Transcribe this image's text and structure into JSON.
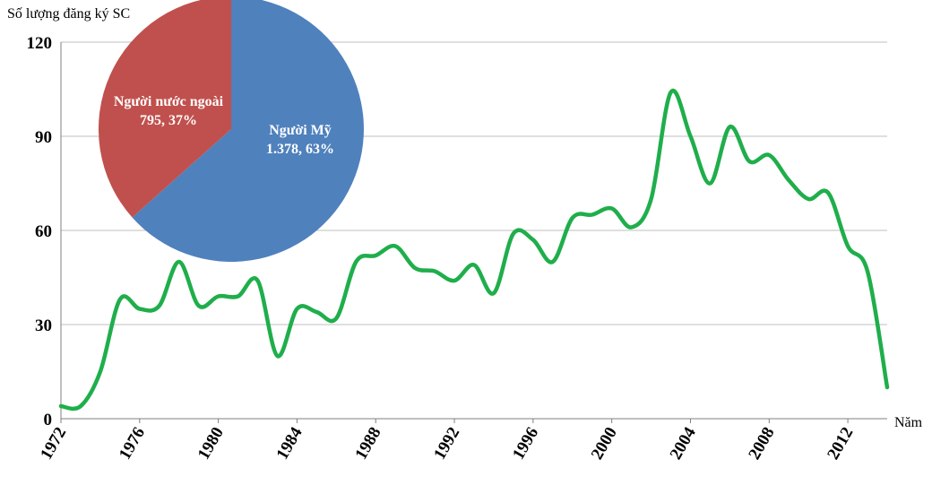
{
  "chart_data": [
    {
      "type": "line",
      "ylabel": "Số lượng đăng ký SC",
      "xlabel": "Năm",
      "ylim": [
        0,
        120
      ],
      "yticks": [
        0,
        30,
        60,
        90,
        120
      ],
      "xlim": [
        1972,
        2014
      ],
      "xticks": [
        1972,
        1976,
        1980,
        1984,
        1988,
        1992,
        1996,
        2000,
        2004,
        2008,
        2012
      ],
      "grid": true,
      "color": "#1fae4b",
      "series": [
        {
          "x": [
            1972,
            1973,
            1974,
            1975,
            1976,
            1977,
            1978,
            1979,
            1980,
            1981,
            1982,
            1983,
            1984,
            1985,
            1986,
            1987,
            1988,
            1989,
            1990,
            1991,
            1992,
            1993,
            1994,
            1995,
            1996,
            1997,
            1998,
            1999,
            2000,
            2001,
            2002,
            2003,
            2004,
            2005,
            2006,
            2007,
            2008,
            2009,
            2010,
            2011,
            2012,
            2013,
            2014
          ],
          "y": [
            4,
            4,
            15,
            38,
            35,
            36,
            50,
            36,
            39,
            39,
            44,
            20,
            35,
            34,
            32,
            50,
            52,
            55,
            48,
            47,
            44,
            49,
            40,
            59,
            57,
            50,
            64,
            65,
            67,
            61,
            70,
            104,
            90,
            75,
            93,
            82,
            84,
            76,
            70,
            72,
            55,
            47,
            10
          ]
        }
      ]
    },
    {
      "type": "pie",
      "slices": [
        {
          "label": "Người Mỹ",
          "value": 1378,
          "value_text": "1.378",
          "percent": "63%",
          "color": "#4f81bd"
        },
        {
          "label": "Người nước ngoài",
          "value": 795,
          "value_text": "795",
          "percent": "37%",
          "color": "#c0504d"
        }
      ]
    }
  ]
}
